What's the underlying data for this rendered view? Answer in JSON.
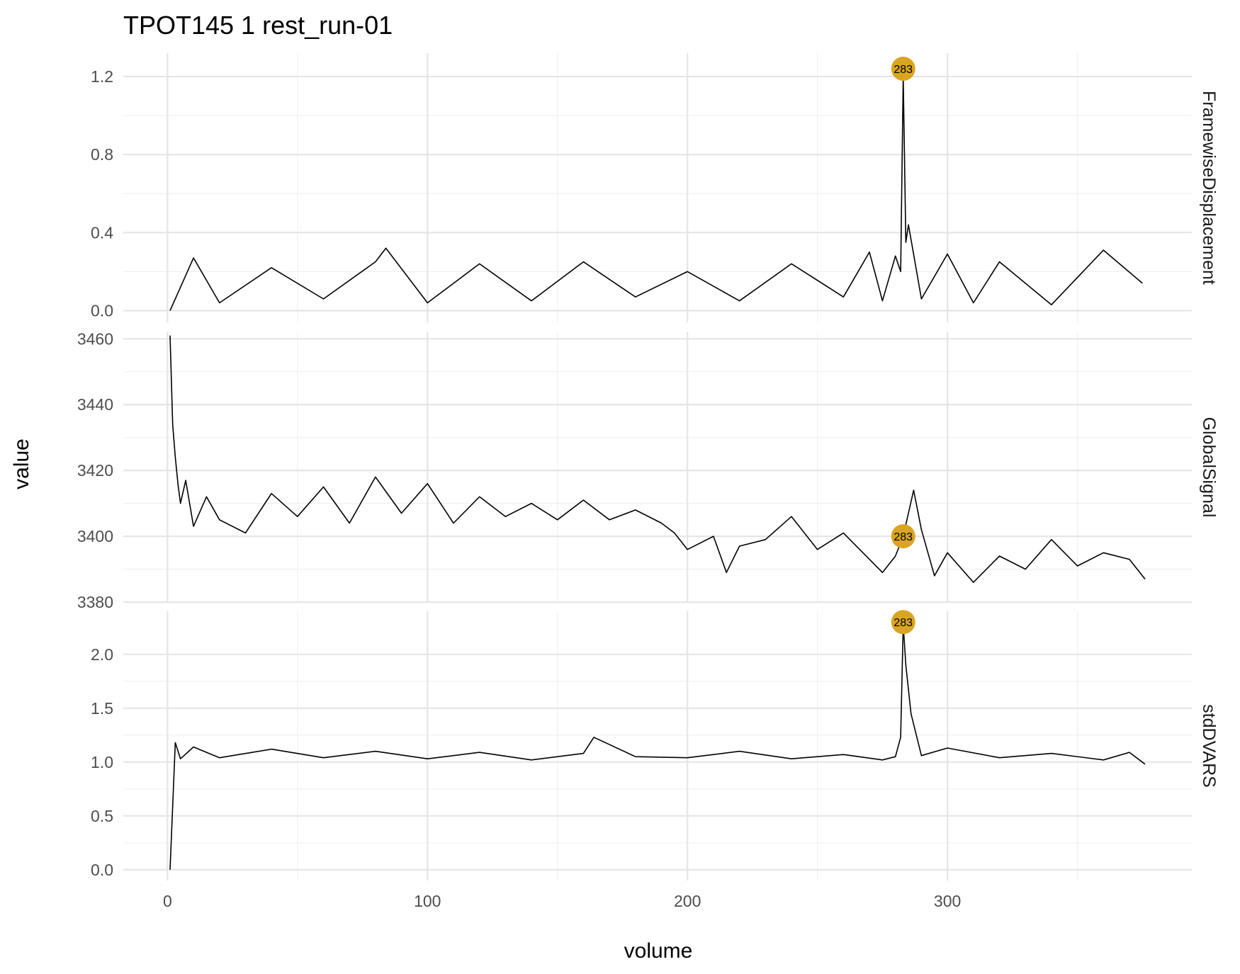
{
  "chart_data": {
    "type": "line",
    "title": "TPOT145  1  rest_run-01",
    "xlabel": "volume",
    "ylabel": "value",
    "xlim": [
      -17,
      394
    ],
    "x_ticks": [
      0,
      100,
      200,
      300
    ],
    "grid": true,
    "legend": "none",
    "line_color": "#000000",
    "marker_color": "#DAA520",
    "panels": [
      {
        "name": "FramewiseDisplacement",
        "ylim": [
          -0.06,
          1.32
        ],
        "y_ticks": [
          0.0,
          0.4,
          0.8,
          1.2
        ],
        "y_tick_labels": [
          "0.0",
          "0.4",
          "0.8",
          "1.2"
        ],
        "series": {
          "x": [
            1,
            10,
            20,
            40,
            60,
            80,
            84,
            100,
            120,
            140,
            160,
            180,
            200,
            220,
            240,
            260,
            270,
            275,
            280,
            282,
            283,
            284,
            285,
            290,
            300,
            310,
            320,
            340,
            360,
            375
          ],
          "y": [
            0.0,
            0.27,
            0.04,
            0.22,
            0.06,
            0.25,
            0.32,
            0.04,
            0.24,
            0.05,
            0.25,
            0.07,
            0.2,
            0.05,
            0.24,
            0.07,
            0.3,
            0.05,
            0.28,
            0.2,
            1.2,
            0.35,
            0.44,
            0.06,
            0.29,
            0.04,
            0.25,
            0.03,
            0.31,
            0.14
          ]
        },
        "annotation": {
          "x": 283,
          "y": 1.24,
          "label": "283"
        }
      },
      {
        "name": "GlobalSignal",
        "ylim": [
          3380,
          3462
        ],
        "y_ticks": [
          3380,
          3400,
          3420,
          3440,
          3460
        ],
        "y_tick_labels": [
          "3380",
          "3400",
          "3420",
          "3440",
          "3460"
        ],
        "series": {
          "x": [
            1,
            2,
            3,
            4,
            5,
            7,
            10,
            15,
            20,
            30,
            40,
            50,
            60,
            70,
            80,
            90,
            100,
            110,
            120,
            130,
            140,
            150,
            160,
            170,
            180,
            190,
            195,
            200,
            210,
            215,
            220,
            230,
            240,
            250,
            260,
            270,
            275,
            280,
            283,
            287,
            290,
            295,
            300,
            310,
            320,
            330,
            340,
            350,
            360,
            370,
            376
          ],
          "y": [
            3461,
            3434,
            3424,
            3416,
            3410,
            3417,
            3403,
            3412,
            3405,
            3401,
            3413,
            3406,
            3415,
            3404,
            3418,
            3407,
            3416,
            3404,
            3412,
            3406,
            3410,
            3405,
            3411,
            3405,
            3408,
            3404,
            3401,
            3396,
            3400,
            3389,
            3397,
            3399,
            3406,
            3396,
            3401,
            3393,
            3389,
            3394,
            3400,
            3414,
            3402,
            3388,
            3395,
            3386,
            3394,
            3390,
            3399,
            3391,
            3395,
            3393,
            3387
          ]
        },
        "annotation": {
          "x": 283,
          "y": 3400,
          "label": "283"
        }
      },
      {
        "name": "stdDVARS",
        "ylim": [
          -0.1,
          2.4
        ],
        "y_ticks": [
          0.0,
          0.5,
          1.0,
          1.5,
          2.0
        ],
        "y_tick_labels": [
          "0.0",
          "0.5",
          "1.0",
          "1.5",
          "2.0"
        ],
        "series": {
          "x": [
            1,
            3,
            5,
            10,
            20,
            40,
            60,
            80,
            100,
            120,
            140,
            160,
            164,
            180,
            200,
            220,
            240,
            260,
            275,
            280,
            282,
            283,
            284,
            286,
            290,
            300,
            320,
            340,
            360,
            370,
            376
          ],
          "y": [
            0.0,
            1.18,
            1.03,
            1.14,
            1.04,
            1.12,
            1.04,
            1.1,
            1.03,
            1.09,
            1.02,
            1.08,
            1.23,
            1.05,
            1.04,
            1.1,
            1.03,
            1.07,
            1.02,
            1.05,
            1.23,
            2.28,
            1.9,
            1.45,
            1.06,
            1.13,
            1.04,
            1.08,
            1.02,
            1.09,
            0.98
          ]
        },
        "annotation": {
          "x": 283,
          "y": 2.3,
          "label": "283"
        }
      }
    ]
  }
}
